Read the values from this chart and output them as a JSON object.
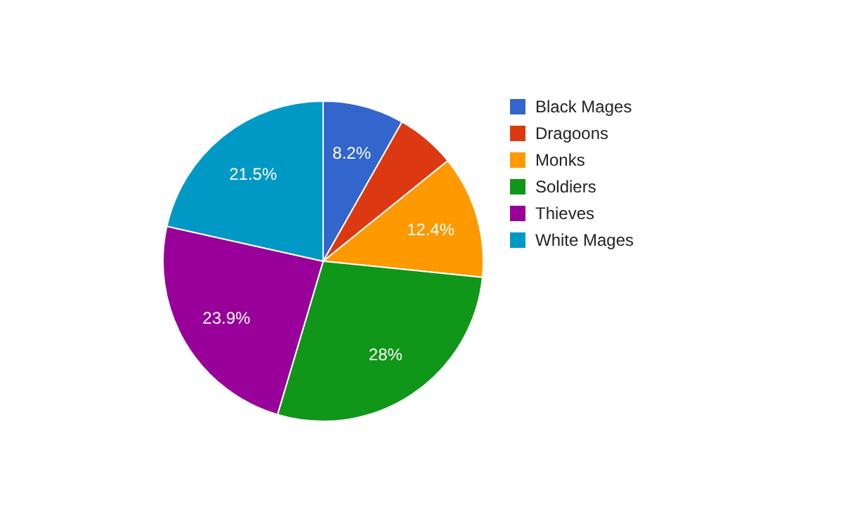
{
  "chart_data": {
    "type": "pie",
    "categories": [
      "Black Mages",
      "Dragoons",
      "Monks",
      "Soldiers",
      "Thieves",
      "White Mages"
    ],
    "values": [
      8.2,
      6.0,
      12.4,
      28,
      23.9,
      21.5
    ],
    "value_labels": [
      "8.2%",
      null,
      "12.4%",
      "28%",
      "23.9%",
      "21.5%"
    ],
    "colors": [
      "#3366cc",
      "#dc3912",
      "#ff9900",
      "#109618",
      "#990099",
      "#0099c6"
    ],
    "legend": "right"
  }
}
